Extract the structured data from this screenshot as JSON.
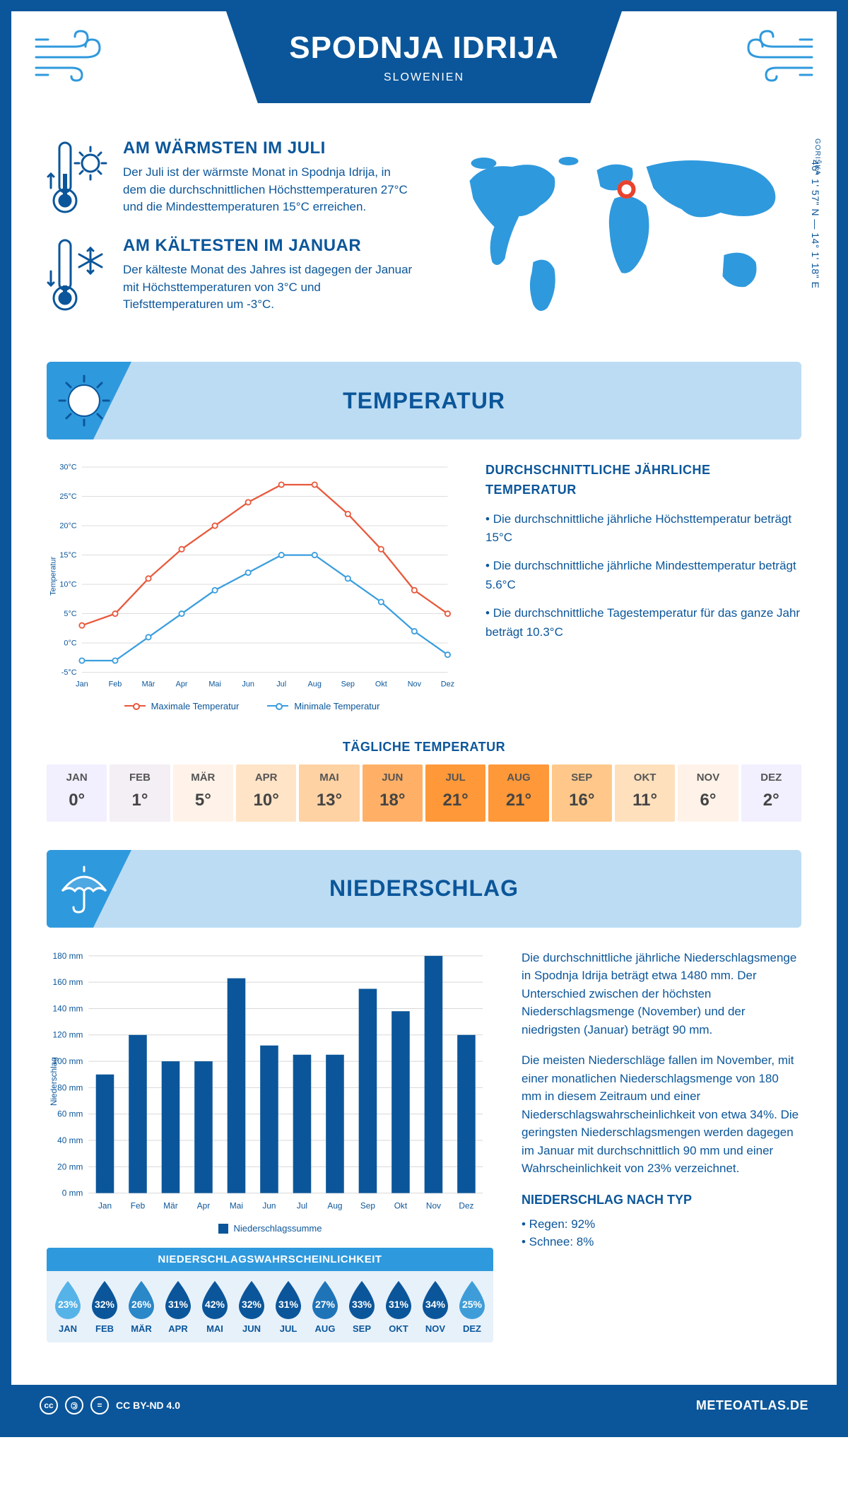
{
  "header": {
    "title": "SPODNJA IDRIJA",
    "subtitle": "SLOWENIEN"
  },
  "coords": "46° 1' 57\" N — 14° 1' 18\" E",
  "region": "GORIŠKA",
  "intro": {
    "warm_h": "AM WÄRMSTEN IM JULI",
    "warm_p": "Der Juli ist der wärmste Monat in Spodnja Idrija, in dem die durchschnittlichen Höchsttemperaturen 27°C und die Mindesttemperaturen 15°C erreichen.",
    "cold_h": "AM KÄLTESTEN IM JANUAR",
    "cold_p": "Der kälteste Monat des Jahres ist dagegen der Januar mit Höchsttemperaturen von 3°C und Tiefsttemperaturen um -3°C."
  },
  "banner_temp": "TEMPERATUR",
  "banner_precip": "NIEDERSCHLAG",
  "temp_chart": {
    "months": [
      "Jan",
      "Feb",
      "Mär",
      "Apr",
      "Mai",
      "Jun",
      "Jul",
      "Aug",
      "Sep",
      "Okt",
      "Nov",
      "Dez"
    ],
    "max": [
      3,
      5,
      11,
      16,
      20,
      24,
      27,
      27,
      22,
      16,
      9,
      5
    ],
    "min": [
      -3,
      -3,
      1,
      5,
      9,
      12,
      15,
      15,
      11,
      7,
      2,
      -2
    ],
    "ylim": [
      -5,
      30
    ],
    "ytick_step": 5,
    "max_color": "#e8583b",
    "min_color": "#3a9ede",
    "grid_color": "#d8d8d8",
    "y_axis_label": "Temperatur",
    "legend_max": "Maximale Temperatur",
    "legend_min": "Minimale Temperatur"
  },
  "temp_text": {
    "h": "DURCHSCHNITTLICHE JÄHRLICHE TEMPERATUR",
    "b1": "• Die durchschnittliche jährliche Höchsttemperatur beträgt 15°C",
    "b2": "• Die durchschnittliche jährliche Mindesttemperatur beträgt 5.6°C",
    "b3": "• Die durchschnittliche Tagestemperatur für das ganze Jahr beträgt 10.3°C"
  },
  "daily": {
    "h": "TÄGLICHE TEMPERATUR",
    "months": [
      "JAN",
      "FEB",
      "MÄR",
      "APR",
      "MAI",
      "JUN",
      "JUL",
      "AUG",
      "SEP",
      "OKT",
      "NOV",
      "DEZ"
    ],
    "values": [
      "0°",
      "1°",
      "5°",
      "10°",
      "13°",
      "18°",
      "21°",
      "21°",
      "16°",
      "11°",
      "6°",
      "2°"
    ],
    "colors": [
      "#f2efff",
      "#f4eef5",
      "#fff2e8",
      "#ffe4c7",
      "#ffd2a3",
      "#ffb066",
      "#ff9838",
      "#ff9838",
      "#ffc88a",
      "#ffe0bd",
      "#fff2e8",
      "#f2efff"
    ]
  },
  "precip_chart": {
    "months": [
      "Jan",
      "Feb",
      "Mär",
      "Apr",
      "Mai",
      "Jun",
      "Jul",
      "Aug",
      "Sep",
      "Okt",
      "Nov",
      "Dez"
    ],
    "values": [
      90,
      120,
      100,
      100,
      163,
      112,
      105,
      105,
      155,
      138,
      180,
      120
    ],
    "ylim": [
      0,
      180
    ],
    "ytick_step": 20,
    "bar_color": "#0b569a",
    "grid_color": "#d8d8d8",
    "y_axis_label": "Niederschlag",
    "legend": "Niederschlagssumme"
  },
  "precip_text": {
    "p1": "Die durchschnittliche jährliche Niederschlagsmenge in Spodnja Idrija beträgt etwa 1480 mm. Der Unterschied zwischen der höchsten Niederschlagsmenge (November) und der niedrigsten (Januar) beträgt 90 mm.",
    "p2": "Die meisten Niederschläge fallen im November, mit einer monatlichen Niederschlagsmenge von 180 mm in diesem Zeitraum und einer Niederschlagswahrscheinlichkeit von etwa 34%. Die geringsten Niederschlagsmengen werden dagegen im Januar mit durchschnittlich 90 mm und einer Wahrscheinlichkeit von 23% verzeichnet.",
    "type_h": "NIEDERSCHLAG NACH TYP",
    "type_1": "• Regen: 92%",
    "type_2": "• Schnee: 8%"
  },
  "prob": {
    "h": "NIEDERSCHLAGSWAHRSCHEINLICHKEIT",
    "months": [
      "JAN",
      "FEB",
      "MÄR",
      "APR",
      "MAI",
      "JUN",
      "JUL",
      "AUG",
      "SEP",
      "OKT",
      "NOV",
      "DEZ"
    ],
    "values": [
      "23%",
      "32%",
      "26%",
      "31%",
      "42%",
      "32%",
      "31%",
      "27%",
      "33%",
      "31%",
      "34%",
      "25%"
    ],
    "colors": [
      "#56b3e8",
      "#0b569a",
      "#2a87c8",
      "#0b569a",
      "#0b569a",
      "#0b569a",
      "#0b569a",
      "#1f74b8",
      "#0b569a",
      "#0b569a",
      "#0b569a",
      "#3e9dd8"
    ]
  },
  "footer": {
    "license": "CC BY-ND 4.0",
    "site": "METEOATLAS.DE"
  }
}
